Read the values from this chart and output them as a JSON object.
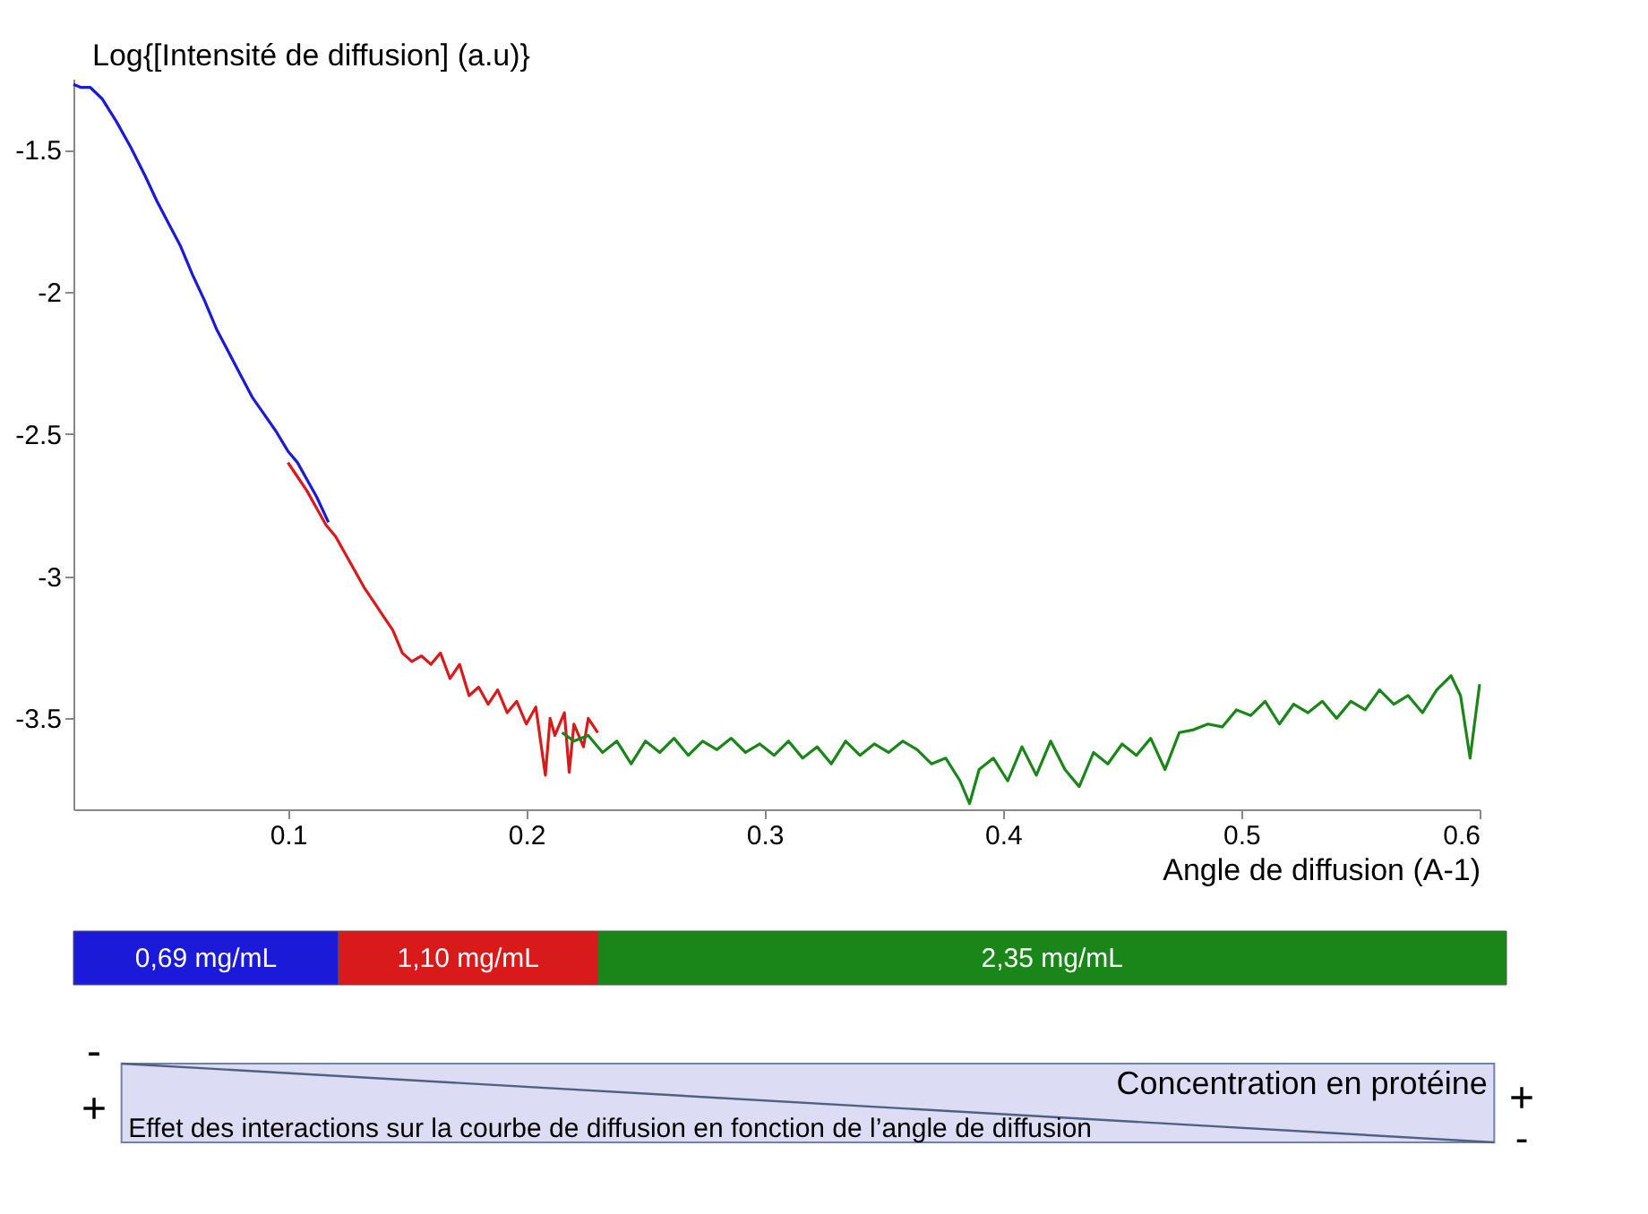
{
  "chart_data": {
    "type": "line",
    "xlabel": "Angle de diffusion (A-1)",
    "ylabel": "Log{[Intensité de diffusion] (a.u)}",
    "xlim": [
      0.01,
      0.6
    ],
    "ylim": [
      -3.82,
      -1.25
    ],
    "xticks": [
      0.1,
      0.2,
      0.3,
      0.4,
      0.5,
      0.6
    ],
    "yticks": [
      -1.5,
      -2,
      -2.5,
      -3,
      -3.5
    ],
    "grid": false,
    "legend": "bottom",
    "marker": "none",
    "line_style": "solid",
    "series": [
      {
        "name": "0,69 mg/mL",
        "color": "#1a1ad8",
        "x": [
          0.01,
          0.013,
          0.017,
          0.022,
          0.028,
          0.034,
          0.04,
          0.045,
          0.05,
          0.055,
          0.06,
          0.065,
          0.07,
          0.075,
          0.08,
          0.085,
          0.09,
          0.095,
          0.1,
          0.104,
          0.108,
          0.112,
          0.117
        ],
        "values": [
          -1.27,
          -1.28,
          -1.28,
          -1.32,
          -1.4,
          -1.49,
          -1.59,
          -1.68,
          -1.76,
          -1.84,
          -1.94,
          -2.03,
          -2.13,
          -2.21,
          -2.29,
          -2.37,
          -2.43,
          -2.49,
          -2.56,
          -2.6,
          -2.66,
          -2.72,
          -2.81
        ]
      },
      {
        "name": "1,10 mg/mL",
        "color": "#d81a1a",
        "x": [
          0.1,
          0.104,
          0.108,
          0.112,
          0.116,
          0.12,
          0.124,
          0.128,
          0.132,
          0.136,
          0.14,
          0.144,
          0.148,
          0.152,
          0.156,
          0.16,
          0.164,
          0.168,
          0.172,
          0.176,
          0.18,
          0.184,
          0.188,
          0.192,
          0.196,
          0.2,
          0.204,
          0.208,
          0.21,
          0.212,
          0.216,
          0.218,
          0.22,
          0.224,
          0.226,
          0.23
        ],
        "values": [
          -2.6,
          -2.65,
          -2.7,
          -2.76,
          -2.82,
          -2.86,
          -2.92,
          -2.98,
          -3.04,
          -3.09,
          -3.14,
          -3.19,
          -3.27,
          -3.3,
          -3.28,
          -3.31,
          -3.27,
          -3.36,
          -3.31,
          -3.42,
          -3.39,
          -3.45,
          -3.4,
          -3.48,
          -3.44,
          -3.52,
          -3.46,
          -3.7,
          -3.5,
          -3.56,
          -3.48,
          -3.69,
          -3.52,
          -3.6,
          -3.5,
          -3.55
        ]
      },
      {
        "name": "2,35 mg/mL",
        "color": "#1a861a",
        "x": [
          0.215,
          0.22,
          0.226,
          0.232,
          0.238,
          0.244,
          0.25,
          0.256,
          0.262,
          0.268,
          0.274,
          0.28,
          0.286,
          0.292,
          0.298,
          0.304,
          0.31,
          0.316,
          0.322,
          0.328,
          0.334,
          0.34,
          0.346,
          0.352,
          0.358,
          0.364,
          0.37,
          0.376,
          0.382,
          0.386,
          0.39,
          0.396,
          0.402,
          0.408,
          0.414,
          0.42,
          0.426,
          0.432,
          0.438,
          0.444,
          0.45,
          0.456,
          0.462,
          0.468,
          0.474,
          0.48,
          0.486,
          0.492,
          0.498,
          0.504,
          0.51,
          0.516,
          0.522,
          0.528,
          0.534,
          0.54,
          0.546,
          0.552,
          0.558,
          0.564,
          0.57,
          0.576,
          0.582,
          0.588,
          0.592,
          0.596,
          0.6
        ],
        "values": [
          -3.55,
          -3.58,
          -3.56,
          -3.62,
          -3.58,
          -3.66,
          -3.58,
          -3.62,
          -3.57,
          -3.63,
          -3.58,
          -3.61,
          -3.57,
          -3.62,
          -3.59,
          -3.63,
          -3.58,
          -3.64,
          -3.6,
          -3.66,
          -3.58,
          -3.63,
          -3.59,
          -3.62,
          -3.58,
          -3.61,
          -3.66,
          -3.64,
          -3.72,
          -3.8,
          -3.68,
          -3.64,
          -3.72,
          -3.6,
          -3.7,
          -3.58,
          -3.68,
          -3.74,
          -3.62,
          -3.66,
          -3.59,
          -3.63,
          -3.57,
          -3.68,
          -3.55,
          -3.54,
          -3.52,
          -3.53,
          -3.47,
          -3.49,
          -3.44,
          -3.52,
          -3.45,
          -3.48,
          -3.44,
          -3.5,
          -3.44,
          -3.47,
          -3.4,
          -3.45,
          -3.42,
          -3.48,
          -3.4,
          -3.35,
          -3.42,
          -3.64,
          -3.38
        ]
      }
    ],
    "annotations": [
      "-",
      "+",
      "Concentration en protéine",
      "Effet des interactions sur la courbe de diffusion en fonction de l’angle de diffusion",
      "+",
      "-"
    ]
  }
}
